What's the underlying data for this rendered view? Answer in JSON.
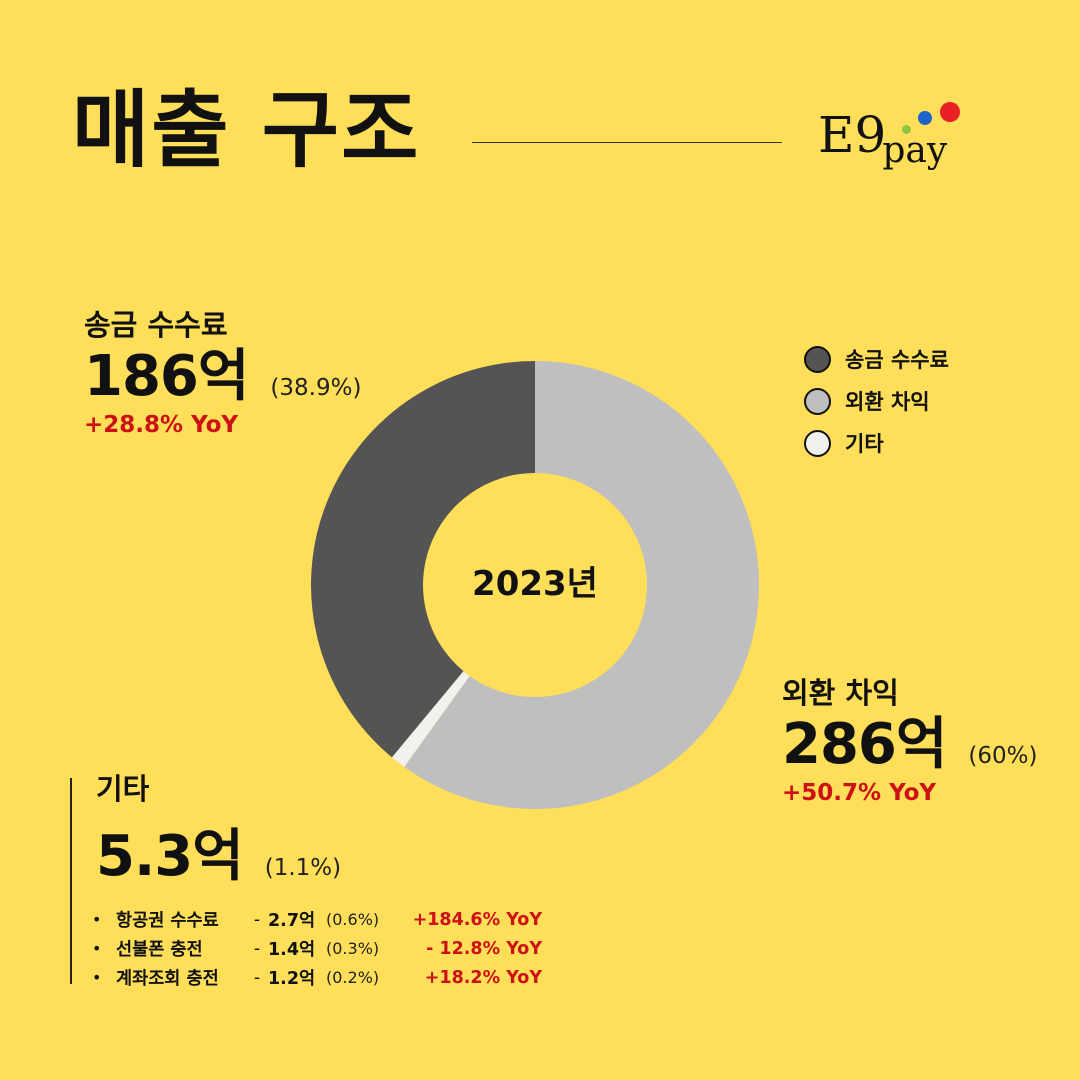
{
  "header": {
    "title": "매출 구조",
    "logo_main": "E9",
    "logo_sub": "pay"
  },
  "chart_data": {
    "type": "donut",
    "center_label": "2023년",
    "segments": [
      {
        "name": "외환 차익",
        "value": 286,
        "unit": "억",
        "share_pct": 60,
        "yoy": "+50.7% YoY",
        "color": "#BFBFBF"
      },
      {
        "name": "기타",
        "value": 5.3,
        "unit": "억",
        "share_pct": 1.1,
        "yoy": "",
        "color": "#F2F1EC"
      },
      {
        "name": "송금 수수료",
        "value": 186,
        "unit": "억",
        "share_pct": 38.9,
        "yoy": "+28.8% YoY",
        "color": "#545454"
      }
    ],
    "legend": [
      {
        "label": "송금 수수료",
        "color": "#545454"
      },
      {
        "label": "외환 차익",
        "color": "#BFBFBF"
      },
      {
        "label": "기타",
        "color": "#F2F1EC"
      }
    ],
    "legend_position": "top-right"
  },
  "blocks": {
    "remit": {
      "name": "송금 수수료",
      "value": "186억",
      "pct": "(38.9%)",
      "yoy": "+28.8% YoY"
    },
    "fx": {
      "name": "외환 차익",
      "value": "286억",
      "pct": "(60%)",
      "yoy": "+50.7% YoY"
    },
    "other": {
      "name": "기타",
      "value": "5.3억",
      "pct": "(1.1%)",
      "items": [
        {
          "bullet": "•",
          "name": "항공권 수수료",
          "dash": "-",
          "amount": "2.7억",
          "pct": "(0.6%)",
          "yoy": "+184.6% YoY"
        },
        {
          "bullet": "•",
          "name": "선불폰 충전",
          "dash": "-",
          "amount": "1.4억",
          "pct": "(0.3%)",
          "yoy": "- 12.8% YoY"
        },
        {
          "bullet": "•",
          "name": "계좌조회 충전",
          "dash": "-",
          "amount": "1.2억",
          "pct": "(0.2%)",
          "yoy": "+18.2% YoY"
        }
      ]
    }
  }
}
